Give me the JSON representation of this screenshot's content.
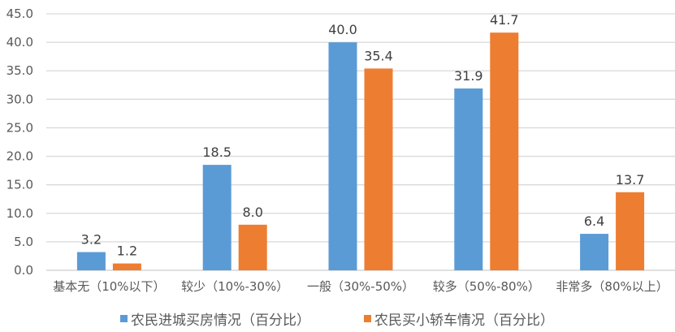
{
  "chart_data": {
    "type": "bar",
    "title": "",
    "xlabel": "",
    "ylabel": "",
    "ylim": [
      0,
      45
    ],
    "yticks": [
      "0.0",
      "5.0",
      "10.0",
      "15.0",
      "20.0",
      "25.0",
      "30.0",
      "35.0",
      "40.0",
      "45.0"
    ],
    "grid": true,
    "legend_position": "bottom",
    "categories": [
      "基本无（10%以下）",
      "较少（10%-30%）",
      "一般（30%-50%）",
      "较多（50%-80%）",
      "非常多（80%以上）"
    ],
    "series": [
      {
        "name": "农民进城买房情况（百分比）",
        "color": "#5b9bd5",
        "values": [
          3.2,
          18.5,
          40.0,
          31.9,
          6.4
        ],
        "labels": [
          "3.2",
          "18.5",
          "40.0",
          "31.9",
          "6.4"
        ]
      },
      {
        "name": "农民买小轿车情况（百分比）",
        "color": "#ed7d31",
        "values": [
          1.2,
          8.0,
          35.4,
          41.7,
          13.7
        ],
        "labels": [
          "1.2",
          "8.0",
          "35.4",
          "41.7",
          "13.7"
        ]
      }
    ]
  },
  "legend": {
    "items": [
      {
        "label": "农民进城买房情况（百分比）",
        "color": "#5b9bd5"
      },
      {
        "label": "农民买小轿车情况（百分比）",
        "color": "#ed7d31"
      }
    ]
  }
}
